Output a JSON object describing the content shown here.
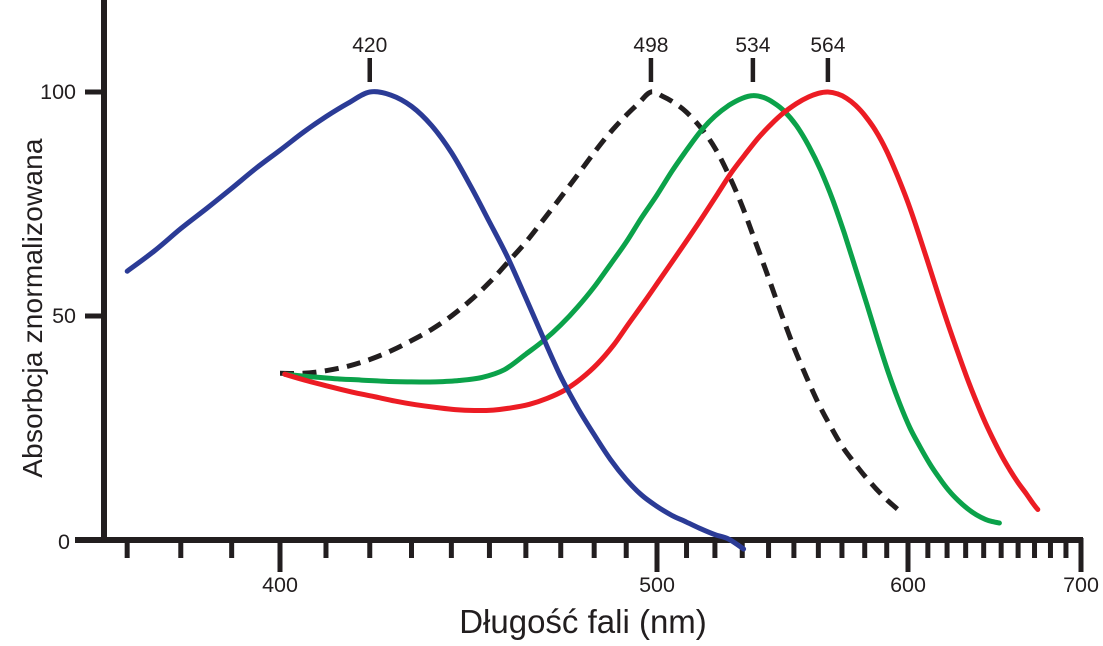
{
  "figure": {
    "background": "#ffffff",
    "ink_color": "#221e1f"
  },
  "chart_data": {
    "type": "line",
    "title": "",
    "xlabel": "Długość fali (nm)",
    "ylabel": "Absorbcja znormalizowana",
    "grid": false,
    "legend": "none",
    "x_axis": {
      "scale": "reciprocal-wavelength",
      "range": [
        370,
        700
      ],
      "major_ticks": [
        400,
        500,
        600,
        700
      ],
      "minor_tick_step_nm": 10
    },
    "y_axis": {
      "range": [
        0,
        100
      ],
      "ticks": [
        0,
        50,
        100
      ]
    },
    "peak_markers": [
      {
        "label": "420",
        "wavelength": 420
      },
      {
        "label": "498",
        "wavelength": 498
      },
      {
        "label": "534",
        "wavelength": 534
      },
      {
        "label": "564",
        "wavelength": 564
      }
    ],
    "series": [
      {
        "id": "rod-498-dashed-black",
        "peak_nm": 498,
        "color": "#221e1f",
        "dashed": true,
        "points": [
          [
            400,
            37.2
          ],
          [
            405,
            37.2
          ],
          [
            410,
            37.8
          ],
          [
            415,
            38.8
          ],
          [
            420,
            40.3
          ],
          [
            425,
            42.2
          ],
          [
            430,
            44.5
          ],
          [
            435,
            47
          ],
          [
            440,
            50
          ],
          [
            445,
            53.5
          ],
          [
            450,
            57.5
          ],
          [
            455,
            62
          ],
          [
            460,
            66.5
          ],
          [
            465,
            71.5
          ],
          [
            470,
            76.5
          ],
          [
            475,
            81.5
          ],
          [
            480,
            86.5
          ],
          [
            485,
            91
          ],
          [
            490,
            94.8
          ],
          [
            494,
            97.5
          ],
          [
            498,
            100
          ],
          [
            502,
            99
          ],
          [
            506,
            97.5
          ],
          [
            510,
            95.5
          ],
          [
            515,
            92
          ],
          [
            520,
            87.5
          ],
          [
            525,
            81.5
          ],
          [
            530,
            74.5
          ],
          [
            535,
            66.5
          ],
          [
            540,
            58.5
          ],
          [
            545,
            50.5
          ],
          [
            550,
            43
          ],
          [
            555,
            36.5
          ],
          [
            560,
            30.5
          ],
          [
            565,
            25.5
          ],
          [
            570,
            21
          ],
          [
            575,
            17.5
          ],
          [
            580,
            14.3
          ],
          [
            585,
            11.5
          ],
          [
            590,
            9
          ],
          [
            594,
            7.3
          ],
          [
            598,
            5.7
          ]
        ]
      },
      {
        "id": "cone-534-green",
        "peak_nm": 534,
        "color": "#0ba24a",
        "dashed": false,
        "points": [
          [
            401,
            37
          ],
          [
            406,
            36.5
          ],
          [
            412,
            36
          ],
          [
            418,
            35.7
          ],
          [
            424,
            35.4
          ],
          [
            430,
            35.3
          ],
          [
            436,
            35.3
          ],
          [
            442,
            35.6
          ],
          [
            448,
            36.3
          ],
          [
            454,
            38
          ],
          [
            460,
            41.5
          ],
          [
            465,
            44.5
          ],
          [
            470,
            48
          ],
          [
            475,
            52
          ],
          [
            480,
            56.5
          ],
          [
            485,
            61.5
          ],
          [
            490,
            66.5
          ],
          [
            495,
            72
          ],
          [
            500,
            77
          ],
          [
            505,
            82.3
          ],
          [
            510,
            87
          ],
          [
            515,
            91.3
          ],
          [
            520,
            94.6
          ],
          [
            525,
            97
          ],
          [
            530,
            98.6
          ],
          [
            534,
            99.2
          ],
          [
            538,
            98.8
          ],
          [
            542,
            97.6
          ],
          [
            546,
            95.8
          ],
          [
            551,
            92.5
          ],
          [
            556,
            88
          ],
          [
            561,
            82.5
          ],
          [
            566,
            76
          ],
          [
            571,
            68.5
          ],
          [
            576,
            60.5
          ],
          [
            581,
            52.5
          ],
          [
            586,
            44.5
          ],
          [
            591,
            37
          ],
          [
            596,
            30.5
          ],
          [
            601,
            25
          ],
          [
            606,
            20.8
          ],
          [
            611,
            17
          ],
          [
            616,
            13.8
          ],
          [
            621,
            11
          ],
          [
            626,
            8.8
          ],
          [
            631,
            7
          ],
          [
            636,
            5.6
          ],
          [
            641,
            4.6
          ],
          [
            645,
            4.1
          ],
          [
            649,
            3.8
          ]
        ]
      },
      {
        "id": "cone-564-red",
        "peak_nm": 564,
        "color": "#ec1c24",
        "dashed": false,
        "points": [
          [
            401,
            37
          ],
          [
            406,
            35.5
          ],
          [
            411,
            34.2
          ],
          [
            416,
            33
          ],
          [
            421,
            32
          ],
          [
            426,
            31
          ],
          [
            431,
            30.2
          ],
          [
            436,
            29.6
          ],
          [
            441,
            29.1
          ],
          [
            446,
            28.9
          ],
          [
            451,
            29
          ],
          [
            456,
            29.5
          ],
          [
            461,
            30.3
          ],
          [
            466,
            31.6
          ],
          [
            471,
            33.4
          ],
          [
            476,
            36
          ],
          [
            481,
            39.3
          ],
          [
            486,
            43.5
          ],
          [
            491,
            48.5
          ],
          [
            496,
            53.3
          ],
          [
            501,
            58.2
          ],
          [
            506,
            63
          ],
          [
            511,
            67.7
          ],
          [
            516,
            72.5
          ],
          [
            521,
            77.3
          ],
          [
            526,
            82
          ],
          [
            531,
            86
          ],
          [
            536,
            89.7
          ],
          [
            541,
            92.8
          ],
          [
            546,
            95.4
          ],
          [
            551,
            97.4
          ],
          [
            556,
            98.9
          ],
          [
            560,
            99.7
          ],
          [
            564,
            100
          ],
          [
            568,
            99.6
          ],
          [
            572,
            98.6
          ],
          [
            576,
            97
          ],
          [
            580,
            94.8
          ],
          [
            585,
            91.3
          ],
          [
            590,
            86.8
          ],
          [
            595,
            81.3
          ],
          [
            600,
            75.3
          ],
          [
            605,
            68.8
          ],
          [
            610,
            62
          ],
          [
            615,
            55.3
          ],
          [
            620,
            48.8
          ],
          [
            625,
            42.8
          ],
          [
            630,
            37
          ],
          [
            635,
            31.8
          ],
          [
            640,
            27
          ],
          [
            645,
            22.8
          ],
          [
            650,
            19
          ],
          [
            655,
            15.7
          ],
          [
            660,
            12.8
          ],
          [
            665,
            10.3
          ],
          [
            669,
            8.2
          ],
          [
            672,
            6.8
          ]
        ]
      },
      {
        "id": "cone-420-blue",
        "peak_nm": 420,
        "color": "#2b3b96",
        "dashed": false,
        "points": [
          [
            370,
            60
          ],
          [
            375,
            64.5
          ],
          [
            380,
            69.5
          ],
          [
            385,
            74
          ],
          [
            390,
            78.5
          ],
          [
            395,
            83
          ],
          [
            400,
            87
          ],
          [
            405,
            91
          ],
          [
            410,
            94.5
          ],
          [
            415,
            97.5
          ],
          [
            420,
            100
          ],
          [
            425,
            99.3
          ],
          [
            430,
            96.8
          ],
          [
            435,
            92.5
          ],
          [
            440,
            86.5
          ],
          [
            445,
            79
          ],
          [
            450,
            71
          ],
          [
            455,
            63
          ],
          [
            460,
            54
          ],
          [
            465,
            45
          ],
          [
            470,
            36.5
          ],
          [
            475,
            29.5
          ],
          [
            480,
            23.5
          ],
          [
            485,
            18
          ],
          [
            490,
            13.5
          ],
          [
            495,
            10
          ],
          [
            500,
            7.5
          ],
          [
            505,
            5.5
          ],
          [
            510,
            4
          ],
          [
            515,
            2.5
          ],
          [
            520,
            1.2
          ],
          [
            525,
            0.2
          ],
          [
            530.5,
            -2
          ]
        ]
      }
    ]
  }
}
